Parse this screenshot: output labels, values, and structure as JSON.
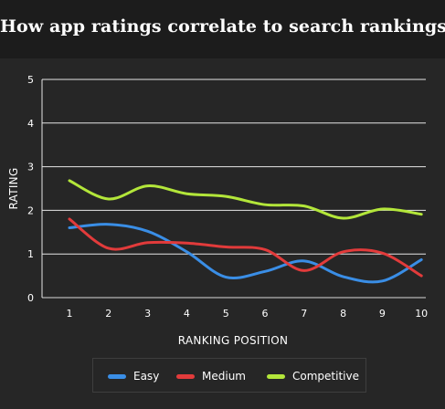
{
  "chart_data": {
    "type": "line",
    "title": "How app ratings correlate to search rankings",
    "xlabel": "RANKING POSITION",
    "ylabel": "RATING",
    "x": [
      1,
      2,
      3,
      4,
      5,
      6,
      7,
      8,
      9,
      10
    ],
    "ylim": [
      0,
      5
    ],
    "yticks": [
      "0",
      "1",
      "2",
      "3",
      "4",
      "5"
    ],
    "xticks": [
      "1",
      "2",
      "3",
      "4",
      "5",
      "6",
      "7",
      "8",
      "9",
      "10"
    ],
    "grid": true,
    "legend": "bottom",
    "series": [
      {
        "name": "Easy",
        "color": "#3a8ee6",
        "values": [
          1.6,
          1.68,
          1.52,
          1.05,
          0.47,
          0.6,
          0.84,
          0.48,
          0.38,
          0.87
        ]
      },
      {
        "name": "Medium",
        "color": "#e23b3b",
        "values": [
          1.8,
          1.13,
          1.26,
          1.25,
          1.16,
          1.1,
          0.62,
          1.05,
          1.02,
          0.5
        ]
      },
      {
        "name": "Competitive",
        "color": "#b3e63a",
        "values": [
          2.68,
          2.26,
          2.56,
          2.38,
          2.32,
          2.13,
          2.1,
          1.82,
          2.03,
          1.91
        ]
      }
    ]
  }
}
